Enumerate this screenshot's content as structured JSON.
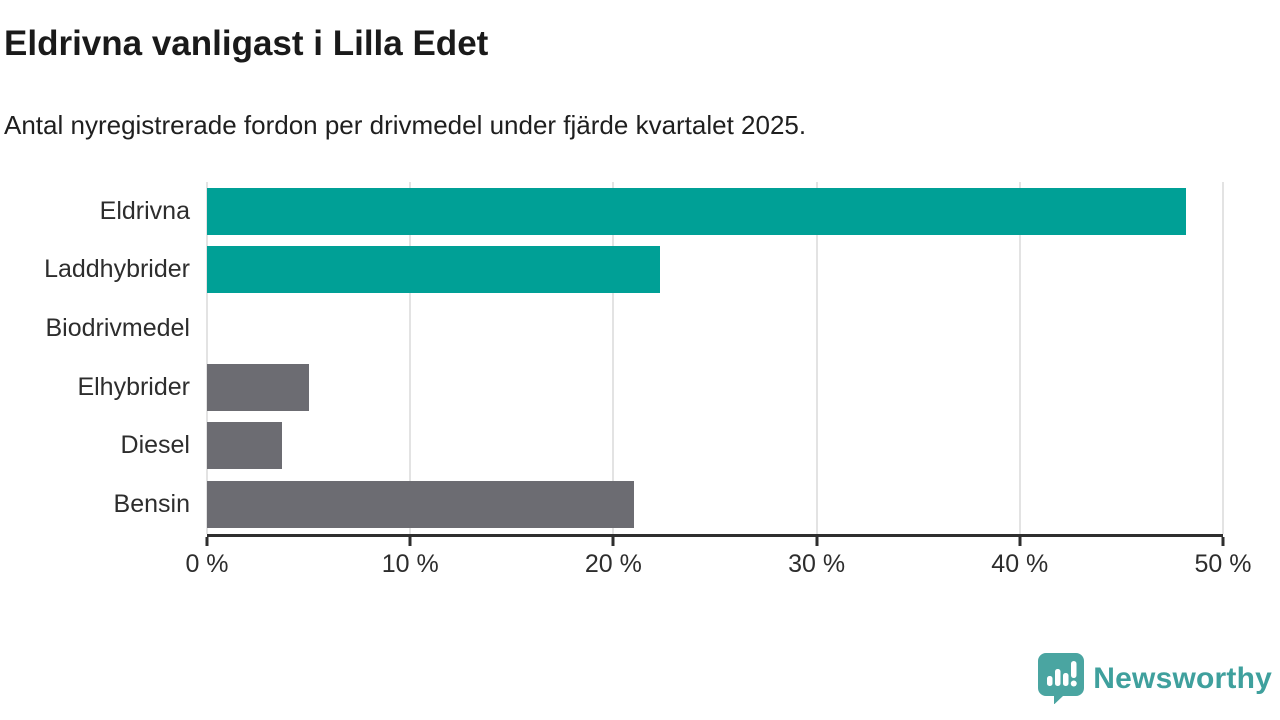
{
  "header": {
    "title": "Eldrivna vanligast i Lilla Edet",
    "subtitle": "Antal nyregistrerade fordon per drivmedel under fjärde kvartalet 2025."
  },
  "chart_data": {
    "type": "bar",
    "orientation": "horizontal",
    "title": "Eldrivna vanligast i Lilla Edet",
    "subtitle": "Antal nyregistrerade fordon per drivmedel under fjärde kvartalet 2025.",
    "categories": [
      "Eldrivna",
      "Laddhybrider",
      "Biodrivmedel",
      "Elhybrider",
      "Diesel",
      "Bensin"
    ],
    "values": [
      48.2,
      22.3,
      0,
      5,
      3.7,
      21
    ],
    "unit": "%",
    "xlabel": "",
    "ylabel": "",
    "xlim": [
      0,
      50
    ],
    "x_ticks": [
      0,
      10,
      20,
      30,
      40,
      50
    ],
    "x_tick_labels": [
      "0 %",
      "10 %",
      "20 %",
      "30 %",
      "40 %",
      "50 %"
    ],
    "bar_colors": [
      "#00a096",
      "#00a096",
      "#6c6c72",
      "#6c6c72",
      "#6c6c72",
      "#6c6c72"
    ],
    "highlight_color": "#00a096",
    "default_color": "#6c6c72",
    "gridline_color": "#e3e3e3",
    "axis_color": "#2e2e2e",
    "grid": true,
    "legend_position": "none"
  },
  "footer": {
    "brand_name": "Newsworthy",
    "brand_color": "#3fa09d",
    "logo_icon": "newsworthy-speech-bubble-bar-chart-icon",
    "logo_color": "#4aa5a1"
  }
}
